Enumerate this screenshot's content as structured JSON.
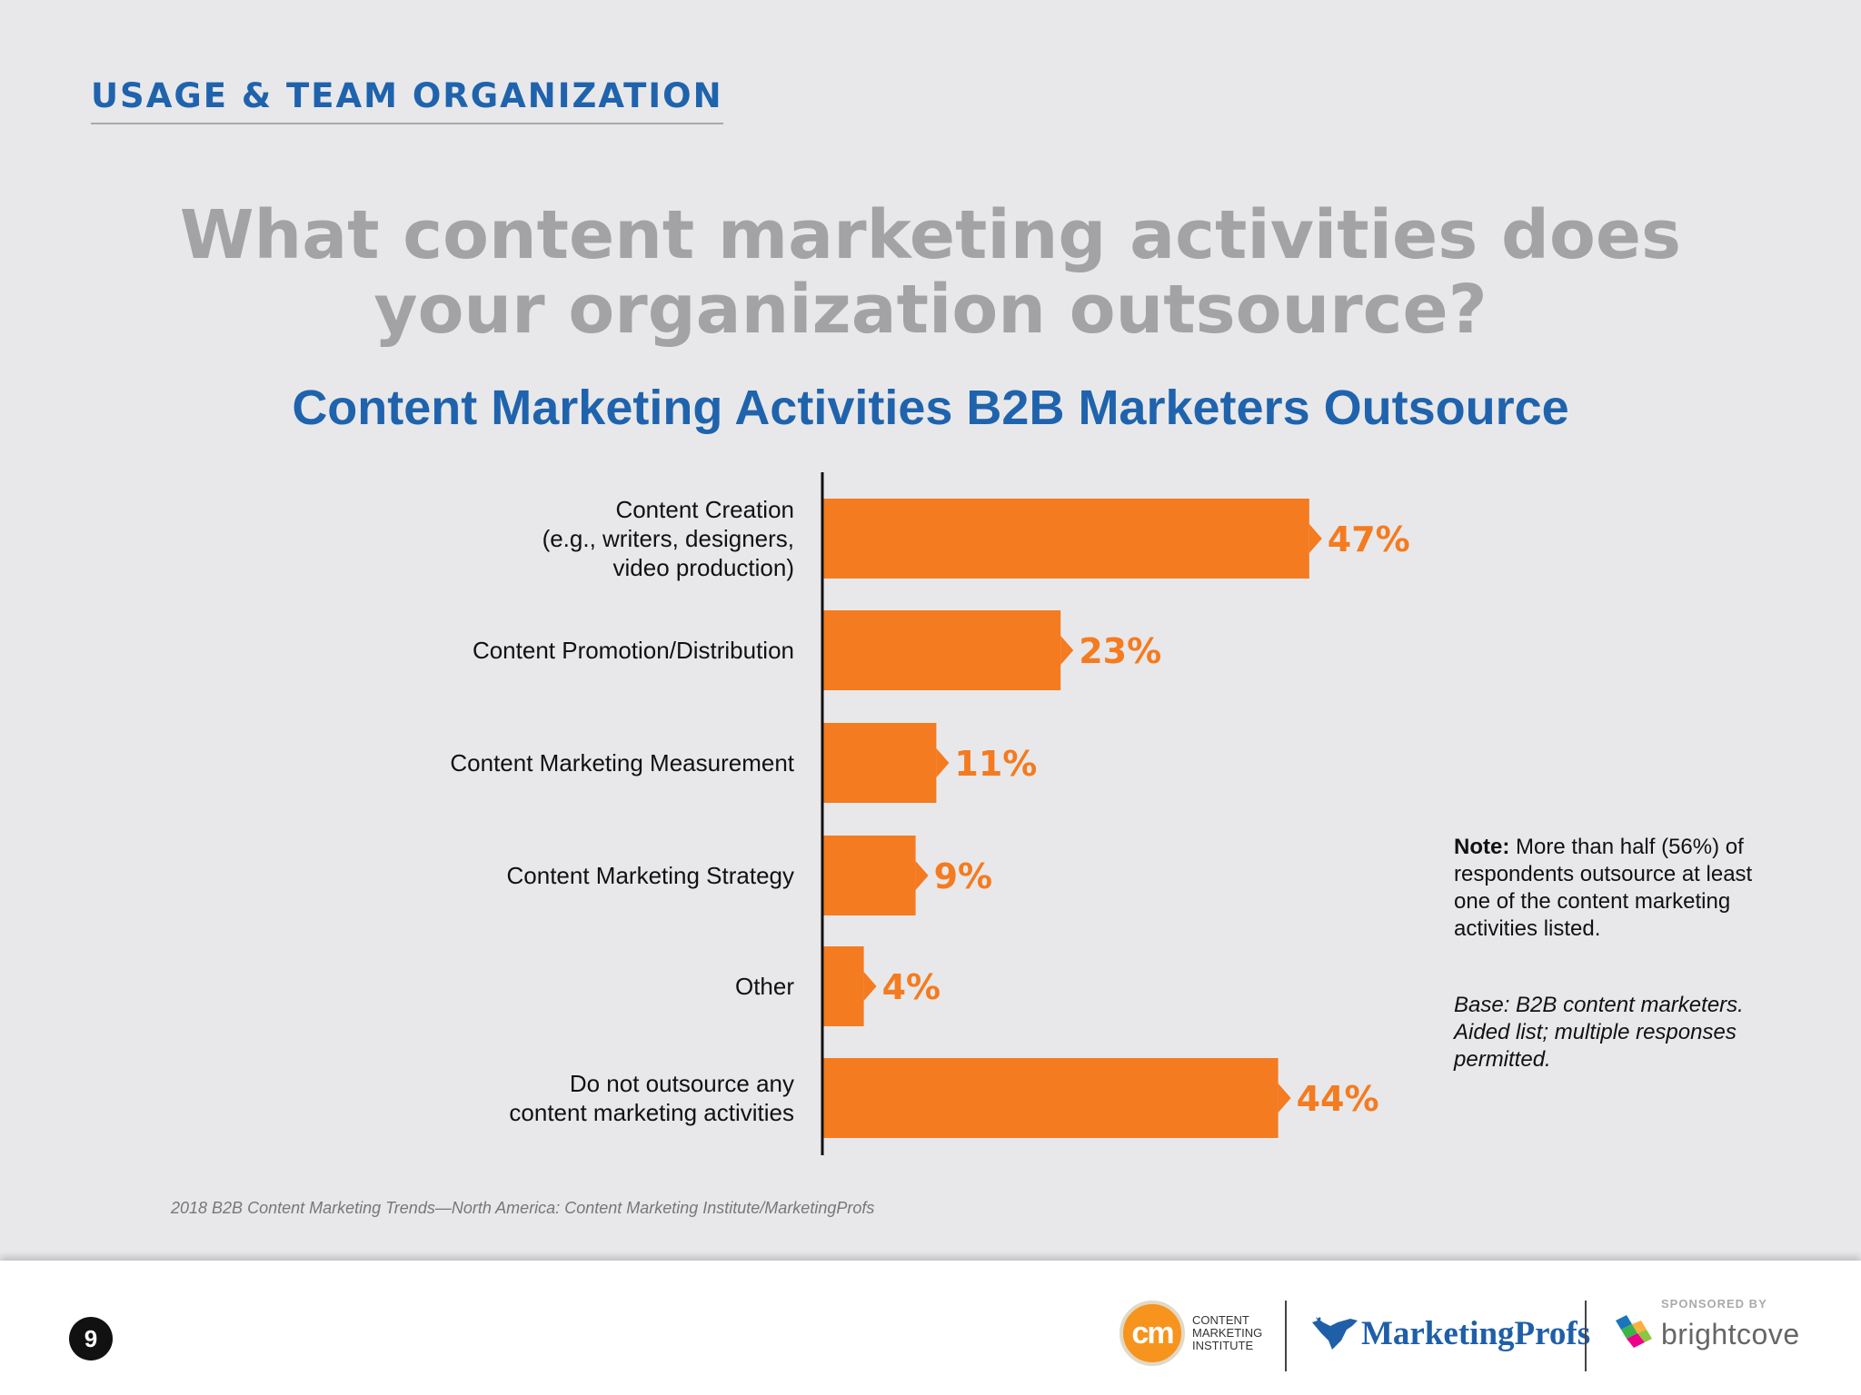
{
  "header": {
    "section": "USAGE & TEAM ORGANIZATION",
    "question": "What content marketing activities does your organization outsource?"
  },
  "chart_data": {
    "type": "bar",
    "orientation": "horizontal",
    "title": "Content Marketing Activities B2B Marketers Outsource",
    "categories": [
      [
        "Content Creation",
        "(e.g., writers, designers,",
        "video production)"
      ],
      [
        "Content Promotion/Distribution"
      ],
      [
        "Content Marketing Measurement"
      ],
      [
        "Content Marketing Strategy"
      ],
      [
        "Other"
      ],
      [
        "Do not outsource any",
        "content marketing activities"
      ]
    ],
    "values": [
      47,
      23,
      11,
      9,
      4,
      44
    ],
    "value_labels": [
      "47%",
      "23%",
      "11%",
      "9%",
      "4%",
      "44%"
    ],
    "xlim": [
      0,
      100
    ],
    "grid": false,
    "bar_color": "#f47b20",
    "label_color": "#f47b20"
  },
  "note": {
    "label": "Note:",
    "text": " More than half (56%) of respondents outsource at least one of the content marketing activities listed."
  },
  "base": "Base: B2B content marketers. Aided list; multiple responses permitted.",
  "source": "2018 B2B Content Marketing Trends—North America: Content Marketing Institute/MarketingProfs",
  "footer": {
    "page_number": "9",
    "cmi": {
      "mark": "cm",
      "text": [
        "CONTENT",
        "MARKETING",
        "INSTITUTE"
      ],
      "icon": "cmi-logo-icon"
    },
    "marketingprofs": {
      "text": "MarketingProfs",
      "icon": "bird-icon"
    },
    "sponsor_label": "SPONSORED BY",
    "brightcove": {
      "text": "brightcove",
      "icon": "cube-icon"
    },
    "colors": {
      "cmi_orange": "#f7941d",
      "mprofs_blue": "#1f5fa8"
    }
  }
}
